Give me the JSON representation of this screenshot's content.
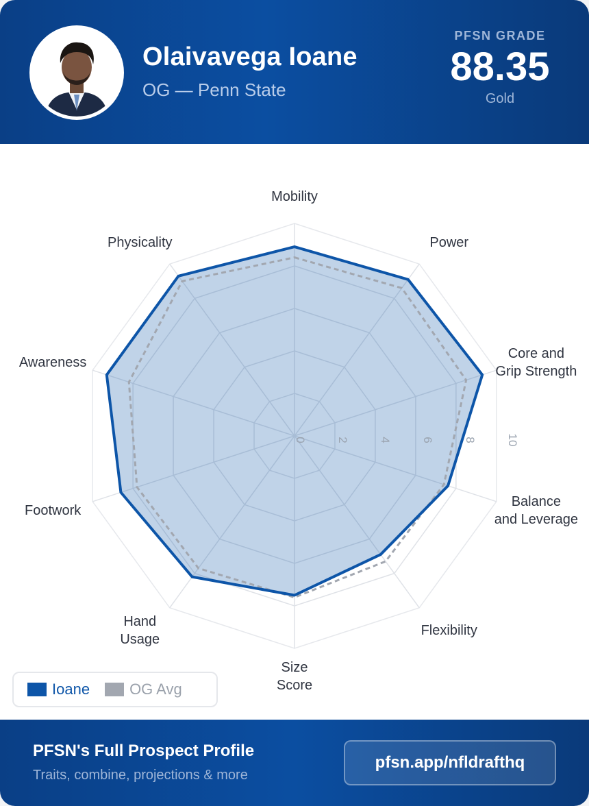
{
  "header": {
    "player_name": "Olaivavega Ioane",
    "subtitle": "OG — Penn State",
    "grade_label": "PFSN GRADE",
    "grade_value": "88.35",
    "grade_tier": "Gold"
  },
  "colors": {
    "brand_blue": "#0d55a8",
    "avg_gray": "#a2a7b0",
    "fill": "#bfd0e4"
  },
  "chart_data": {
    "type": "radar",
    "title": "",
    "axes": [
      "Mobility",
      "Power",
      "Core and Grip Strength",
      "Balance and Leverage",
      "Flexibility",
      "Size Score",
      "Hand Usage",
      "Footwork",
      "Awareness",
      "Physicality"
    ],
    "axis_labels": [
      [
        "Mobility"
      ],
      [
        "Power"
      ],
      [
        "Core and",
        "Grip Strength"
      ],
      [
        "Balance",
        "and Leverage"
      ],
      [
        "Flexibility"
      ],
      [
        "Size",
        "Score"
      ],
      [
        "Hand",
        "Usage"
      ],
      [
        "Footwork"
      ],
      [
        "Awareness"
      ],
      [
        "Physicality"
      ]
    ],
    "range": [
      0,
      10
    ],
    "ticks": [
      "0",
      "2",
      "4",
      "6",
      "8",
      "10"
    ],
    "series": [
      {
        "name": "Ioane",
        "values": [
          8.9,
          9.1,
          9.3,
          7.6,
          6.9,
          7.5,
          8.2,
          8.6,
          9.3,
          9.3
        ]
      },
      {
        "name": "OG Avg",
        "values": [
          8.4,
          8.6,
          8.5,
          7.4,
          7.3,
          7.6,
          7.7,
          7.8,
          8.2,
          9.0
        ]
      }
    ]
  },
  "legend": {
    "player_label": "Ioane",
    "avg_label": "OG Avg"
  },
  "footer": {
    "title": "PFSN's Full Prospect Profile",
    "subtitle": "Traits, combine, projections & more",
    "link_label": "pfsn.app/nfldrafthq"
  }
}
